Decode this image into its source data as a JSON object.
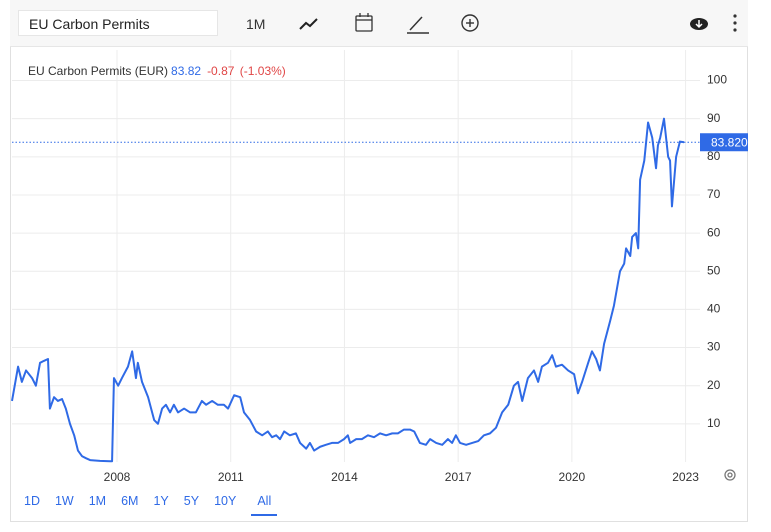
{
  "toolbar": {
    "search": "EU Carbon Permits",
    "interval": "1M"
  },
  "chart_data": {
    "type": "line",
    "series": [
      {
        "name": "EU Carbon Permits (EUR)",
        "color": "#2f6ae6",
        "values": [
          16,
          25,
          21,
          24,
          22,
          20,
          26,
          26.5,
          27,
          14,
          17,
          16,
          16.5,
          14,
          10,
          7,
          3,
          1.5,
          1,
          0.5,
          0.3,
          0.2,
          0.2,
          22,
          20,
          22,
          25,
          29,
          22,
          26,
          21,
          17,
          11,
          10,
          14,
          15,
          13,
          15,
          13,
          14,
          13,
          13,
          16,
          15,
          16,
          15,
          15,
          14,
          17.5,
          17,
          13,
          11,
          8,
          7,
          8,
          6.5,
          7,
          6,
          8,
          7,
          7.5,
          5,
          3.5,
          5,
          3,
          4,
          4.5,
          5,
          5,
          6,
          7,
          5,
          6,
          6,
          7,
          6.5,
          7.5,
          7,
          7.5,
          7.5,
          8.5,
          8.5,
          8,
          5,
          4.5,
          6,
          5,
          4.5,
          6,
          5,
          7,
          5,
          4.5,
          5,
          5.5,
          7,
          7.5,
          9,
          13,
          15,
          20,
          21,
          16,
          22,
          24,
          21,
          25,
          26,
          28,
          25,
          25.5,
          24,
          23,
          18,
          21,
          26,
          29,
          27,
          24,
          31,
          37,
          41,
          50,
          52,
          56,
          54,
          59,
          60,
          56,
          74,
          79,
          89,
          85,
          77,
          83,
          85,
          90,
          80,
          79,
          67,
          80,
          84,
          83.82
        ]
      }
    ],
    "x": [
      2005.23,
      2005.39,
      2005.49,
      2005.6,
      2005.76,
      2005.86,
      2005.97,
      2006.07,
      2006.18,
      2006.23,
      2006.34,
      2006.44,
      2006.55,
      2006.65,
      2006.76,
      2006.87,
      2006.97,
      2007.08,
      2007.18,
      2007.29,
      2007.55,
      2007.82,
      2007.87,
      2007.92,
      2008.03,
      2008.13,
      2008.29,
      2008.4,
      2008.5,
      2008.55,
      2008.66,
      2008.82,
      2008.98,
      2009.08,
      2009.19,
      2009.29,
      2009.4,
      2009.5,
      2009.61,
      2009.77,
      2009.93,
      2010.08,
      2010.24,
      2010.35,
      2010.51,
      2010.66,
      2010.82,
      2010.93,
      2011.09,
      2011.25,
      2011.35,
      2011.51,
      2011.67,
      2011.83,
      2011.98,
      2012.09,
      2012.2,
      2012.3,
      2012.41,
      2012.56,
      2012.72,
      2012.83,
      2012.99,
      2013.09,
      2013.2,
      2013.36,
      2013.51,
      2013.67,
      2013.83,
      2013.99,
      2014.09,
      2014.15,
      2014.31,
      2014.46,
      2014.62,
      2014.78,
      2014.94,
      2015.1,
      2015.26,
      2015.41,
      2015.57,
      2015.73,
      2015.84,
      2015.99,
      2016.15,
      2016.26,
      2016.42,
      2016.58,
      2016.73,
      2016.84,
      2016.94,
      2017.05,
      2017.21,
      2017.37,
      2017.53,
      2017.68,
      2017.84,
      2018.0,
      2018.16,
      2018.32,
      2018.47,
      2018.58,
      2018.69,
      2018.84,
      2019.0,
      2019.11,
      2019.21,
      2019.37,
      2019.48,
      2019.58,
      2019.74,
      2019.9,
      2020.06,
      2020.16,
      2020.27,
      2020.43,
      2020.53,
      2020.64,
      2020.74,
      2020.85,
      2021.01,
      2021.11,
      2021.27,
      2021.38,
      2021.43,
      2021.54,
      2021.59,
      2021.69,
      2021.75,
      2021.8,
      2021.91,
      2022.01,
      2022.12,
      2022.22,
      2022.27,
      2022.33,
      2022.43,
      2022.54,
      2022.59,
      2022.64,
      2022.75,
      2022.85,
      2022.96
    ],
    "last_value": 83.82,
    "change": -0.87,
    "change_pct": "(-1.03%)",
    "price_line": {
      "value": 83.82,
      "label": "83.820"
    },
    "xlim": [
      2005.23,
      2023.38
    ],
    "ylim": [
      0,
      108
    ],
    "xticks": [
      2008,
      2011,
      2014,
      2017,
      2020,
      2023
    ],
    "yticks": [
      10,
      20,
      30,
      40,
      50,
      60,
      70,
      80,
      90,
      100
    ],
    "grid": true,
    "range_buttons": [
      "1D",
      "1W",
      "1M",
      "6M",
      "1Y",
      "5Y",
      "10Y",
      "All"
    ]
  }
}
